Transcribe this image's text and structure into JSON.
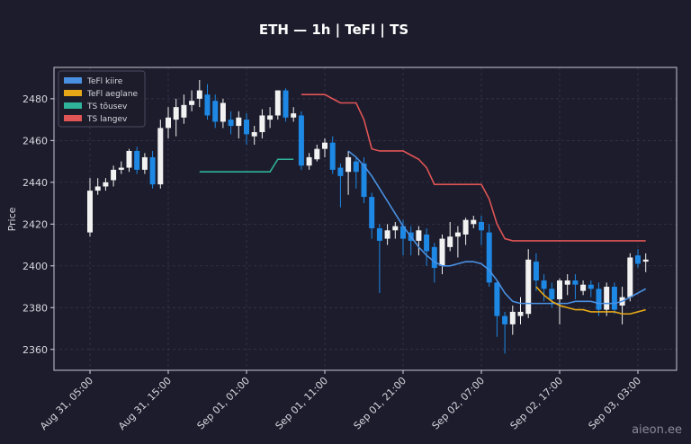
{
  "chart_data": {
    "type": "candlestick",
    "title": "ETH — 1h  |  TeFl  |  TS",
    "ylabel": "Price",
    "watermark": "aieon.ee",
    "categories": [
      "Aug 31, 05:00",
      null,
      null,
      null,
      null,
      null,
      null,
      null,
      null,
      null,
      "Aug 31, 15:00",
      null,
      null,
      null,
      null,
      null,
      null,
      null,
      null,
      null,
      "Sep 01, 01:00",
      null,
      null,
      null,
      null,
      null,
      null,
      null,
      null,
      null,
      "Sep 01, 11:00",
      null,
      null,
      null,
      null,
      null,
      null,
      null,
      null,
      null,
      "Sep 01, 21:00",
      null,
      null,
      null,
      null,
      null,
      null,
      null,
      null,
      null,
      "Sep 02, 07:00",
      null,
      null,
      null,
      null,
      null,
      null,
      null,
      null,
      null,
      "Sep 02, 17:00",
      null,
      null,
      null,
      null,
      null,
      null,
      null,
      null,
      null,
      "Sep 03, 03:00",
      null
    ],
    "open": [
      2416,
      2436,
      2438,
      2441,
      2446,
      2447,
      2455,
      2446,
      2452,
      2439,
      2466,
      2470,
      2471,
      2477,
      2480,
      2482,
      2479,
      2469,
      2470,
      2467,
      2470,
      2462,
      2464,
      2470,
      2472,
      2484,
      2471,
      2472,
      2448,
      2451,
      2456,
      2459,
      2447,
      2445,
      2450,
      2449,
      2433,
      2418,
      2413,
      2417,
      2419,
      2416,
      2412,
      2415,
      2409,
      2400,
      2409,
      2414,
      2415,
      2420,
      2421,
      2416,
      2392,
      2376,
      2372,
      2376,
      2377,
      2402,
      2393,
      2389,
      2384,
      2391,
      2393,
      2388,
      2391,
      2389,
      2379,
      2390,
      2381,
      2385,
      2405,
      2402
    ],
    "high": [
      2442,
      2442,
      2442,
      2448,
      2450,
      2456,
      2457,
      2454,
      2455,
      2470,
      2476,
      2480,
      2482,
      2484,
      2489,
      2487,
      2482,
      2480,
      2474,
      2474,
      2473,
      2467,
      2475,
      2476,
      2484,
      2485,
      2476,
      2474,
      2454,
      2458,
      2461,
      2462,
      2449,
      2455,
      2452,
      2452,
      2435,
      2420,
      2420,
      2421,
      2422,
      2419,
      2419,
      2418,
      2411,
      2415,
      2421,
      2419,
      2423,
      2424,
      2424,
      2420,
      2393,
      2378,
      2381,
      2385,
      2408,
      2406,
      2396,
      2392,
      2394,
      2396,
      2396,
      2393,
      2393,
      2392,
      2392,
      2392,
      2390,
      2406,
      2408,
      2406
    ],
    "low": [
      2414,
      2434,
      2436,
      2438,
      2444,
      2445,
      2444,
      2444,
      2437,
      2437,
      2461,
      2462,
      2468,
      2474,
      2476,
      2470,
      2466,
      2466,
      2463,
      2461,
      2458,
      2458,
      2461,
      2466,
      2470,
      2469,
      2469,
      2446,
      2446,
      2450,
      2452,
      2444,
      2428,
      2434,
      2437,
      2430,
      2413,
      2387,
      2410,
      2413,
      2405,
      2405,
      2405,
      2400,
      2392,
      2396,
      2407,
      2404,
      2410,
      2418,
      2410,
      2390,
      2366,
      2358,
      2367,
      2372,
      2375,
      2388,
      2383,
      2380,
      2372,
      2386,
      2384,
      2386,
      2385,
      2376,
      2376,
      2377,
      2372,
      2383,
      2399,
      2397
    ],
    "close": [
      2436,
      2438,
      2440,
      2446,
      2447,
      2455,
      2446,
      2452,
      2439,
      2466,
      2471,
      2476,
      2477,
      2479,
      2484,
      2472,
      2469,
      2478,
      2467,
      2471,
      2463,
      2464,
      2472,
      2472,
      2484,
      2471,
      2473,
      2448,
      2452,
      2456,
      2459,
      2446,
      2443,
      2452,
      2445,
      2433,
      2418,
      2412,
      2417,
      2419,
      2413,
      2412,
      2417,
      2407,
      2399,
      2413,
      2414,
      2416,
      2422,
      2422,
      2417,
      2392,
      2376,
      2372,
      2378,
      2378,
      2403,
      2393,
      2389,
      2384,
      2393,
      2393,
      2391,
      2391,
      2389,
      2379,
      2390,
      2379,
      2385,
      2404,
      2401,
      2403
    ],
    "up_color": "#f2f2f2",
    "down_color": "#1e88e5",
    "series": [
      {
        "name": "TeFl kiire",
        "color": "#4a90e2",
        "values": [
          null,
          null,
          null,
          null,
          null,
          null,
          null,
          null,
          null,
          null,
          null,
          null,
          null,
          null,
          null,
          null,
          null,
          null,
          null,
          null,
          null,
          null,
          null,
          null,
          null,
          null,
          null,
          null,
          null,
          null,
          null,
          null,
          null,
          2455,
          2452,
          2448,
          2443,
          2437,
          2431,
          2425,
          2419,
          2414,
          2409,
          2405,
          2402,
          2400,
          2400,
          2401,
          2402,
          2402,
          2401,
          2398,
          2393,
          2387,
          2383,
          2382,
          2382,
          2382,
          2382,
          2382,
          2382,
          2382,
          2383,
          2383,
          2383,
          2382,
          2382,
          2382,
          2383,
          2385,
          2387,
          2389
        ]
      },
      {
        "name": "TeFl aeglane",
        "color": "#e6a817",
        "values": [
          null,
          null,
          null,
          null,
          null,
          null,
          null,
          null,
          null,
          null,
          null,
          null,
          null,
          null,
          null,
          null,
          null,
          null,
          null,
          null,
          null,
          null,
          null,
          null,
          null,
          null,
          null,
          null,
          null,
          null,
          null,
          null,
          null,
          null,
          null,
          null,
          null,
          null,
          null,
          null,
          null,
          null,
          null,
          null,
          null,
          null,
          null,
          null,
          null,
          null,
          null,
          null,
          null,
          null,
          null,
          null,
          null,
          2390,
          2386,
          2383,
          2381,
          2380,
          2379,
          2379,
          2378,
          2378,
          2378,
          2378,
          2377,
          2377,
          2378,
          2379
        ]
      },
      {
        "name": "TS tõusev",
        "color": "#2fb39a",
        "values": [
          null,
          null,
          null,
          null,
          null,
          null,
          null,
          null,
          null,
          null,
          null,
          null,
          null,
          null,
          2445,
          2445,
          2445,
          2445,
          2445,
          2445,
          2445,
          2445,
          2445,
          2445,
          2451,
          2451,
          2451,
          null,
          null,
          null,
          null,
          null,
          null,
          null,
          null,
          null,
          null,
          null,
          null,
          null,
          null,
          null,
          null,
          null,
          null,
          null,
          null,
          null,
          null,
          null,
          null,
          null,
          null,
          null,
          null,
          null,
          null,
          null,
          null,
          null,
          null,
          null,
          null,
          null,
          null,
          null,
          null,
          null,
          null,
          null,
          null,
          null
        ]
      },
      {
        "name": "TS langev",
        "color": "#e05555",
        "values": [
          null,
          null,
          null,
          null,
          null,
          null,
          null,
          null,
          null,
          null,
          null,
          null,
          null,
          null,
          null,
          null,
          null,
          null,
          null,
          null,
          null,
          null,
          null,
          null,
          null,
          null,
          null,
          2482,
          2482,
          2482,
          2482,
          2480,
          2478,
          2478,
          2478,
          2470,
          2456,
          2455,
          2455,
          2455,
          2455,
          2453,
          2451,
          2447,
          2439,
          2439,
          2439,
          2439,
          2439,
          2439,
          2439,
          2432,
          2420,
          2413,
          2412,
          2412,
          2412,
          2412,
          2412,
          2412,
          2412,
          2412,
          2412,
          2412,
          2412,
          2412,
          2412,
          2412,
          2412,
          2412,
          2412,
          2412
        ]
      }
    ],
    "ylim": [
      2350,
      2495
    ],
    "yticks": [
      2360,
      2380,
      2400,
      2420,
      2440,
      2460,
      2480
    ],
    "grid": true,
    "legend": "upper left"
  }
}
